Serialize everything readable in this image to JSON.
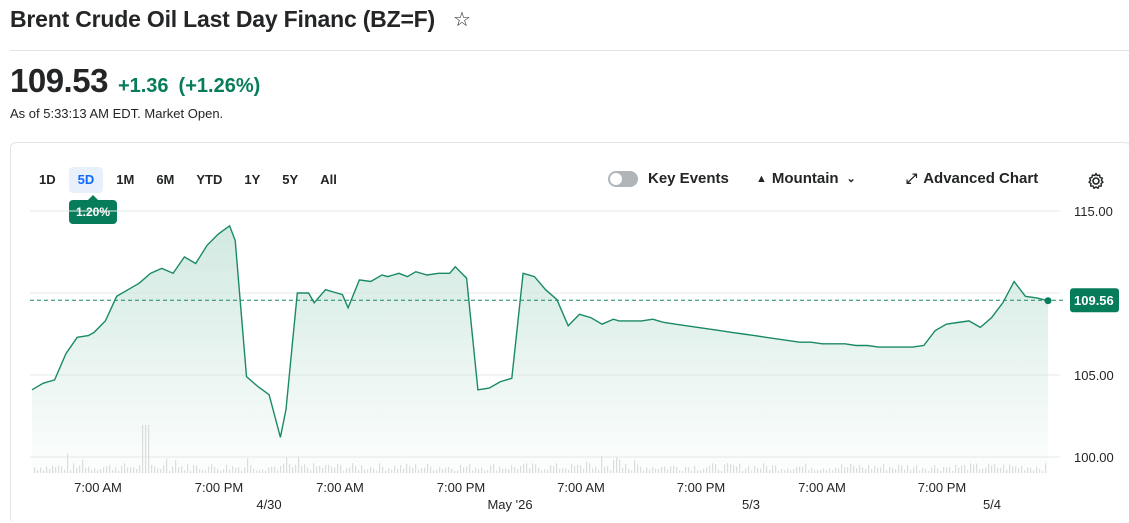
{
  "header": {
    "title": "Brent Crude Oil Last Day Financ (BZ=F)",
    "price": "109.53",
    "change": "+1.36",
    "change_pct": "(+1.26%)",
    "as_of": "As of 5:33:13 AM EDT. Market Open."
  },
  "toolbar": {
    "ranges": [
      "1D",
      "5D",
      "1M",
      "6M",
      "YTD",
      "1Y",
      "5Y",
      "All"
    ],
    "active_range": "5D",
    "range_change_badge": "1.20%",
    "key_events_label": "Key Events",
    "key_events_on": false,
    "chart_type_label": "Mountain",
    "advanced_chart_label": "Advanced Chart"
  },
  "colors": {
    "up": "#077c5a",
    "line": "#1a8a66",
    "fill_top": "#cfe8df",
    "active_range_bg": "#e8f0fb",
    "active_range_text": "#0f69ff",
    "volume": "#d9dcde"
  },
  "chart_data": {
    "type": "area",
    "ylim": [
      100,
      115
    ],
    "y_ticks": [
      "115.00",
      "105.00",
      "100.00"
    ],
    "current_price_label": "109.56",
    "reference_line": 109.56,
    "x_tick_labels": [
      "7:00 AM",
      "7:00 PM",
      "7:00 AM",
      "7:00 PM",
      "7:00 AM",
      "7:00 PM",
      "7:00 AM",
      "7:00 PM"
    ],
    "x_day_labels": [
      "4/30",
      "May '26",
      "5/3",
      "5/4"
    ],
    "series": [
      {
        "t": [
          0,
          4,
          8,
          12,
          16,
          20,
          22,
          26,
          30,
          34,
          38,
          42,
          46,
          50,
          54,
          58,
          62,
          66,
          70,
          72,
          76,
          80,
          84,
          88,
          90,
          94,
          98,
          100,
          104,
          108,
          110,
          112,
          116,
          120,
          124,
          126,
          128,
          130,
          133,
          136,
          140,
          144,
          148,
          150,
          154,
          158,
          162,
          166,
          170,
          174,
          178,
          182,
          186,
          190,
          194,
          198,
          202,
          206,
          208,
          212,
          216,
          220,
          222,
          224,
          228,
          232,
          236,
          240,
          244,
          248,
          252,
          256,
          260,
          264,
          268,
          272,
          276,
          280,
          284,
          288,
          292,
          296,
          300,
          304,
          308,
          312,
          316,
          320,
          324,
          328,
          332,
          336,
          340,
          344,
          348,
          352,
          356,
          360
        ],
        "y": [
          104.1,
          104.5,
          104.7,
          106.3,
          107.3,
          107.4,
          107.6,
          108.3,
          109.8,
          110.2,
          110.6,
          111.2,
          111.5,
          111.2,
          112.2,
          111.8,
          112.9,
          113.6,
          114.1,
          113.2,
          104.9,
          104.3,
          103.8,
          101.2,
          102.9,
          110.0,
          110.0,
          109.4,
          110.2,
          110.0,
          109.9,
          109.1,
          110.8,
          110.7,
          111.1,
          111.0,
          111.1,
          111.2,
          111.0,
          111.3,
          111.1,
          111.2,
          111.2,
          111.6,
          110.9,
          104.1,
          104.2,
          104.6,
          104.8,
          111.2,
          111.0,
          110.2,
          109.6,
          108.0,
          108.7,
          108.5,
          108.1,
          108.4,
          108.3,
          108.3,
          108.3,
          108.4,
          108.3,
          108.2,
          108.1,
          108.0,
          107.9,
          107.8,
          107.7,
          107.6,
          107.5,
          107.4,
          107.3,
          107.2,
          107.1,
          107.0,
          107.0,
          106.9,
          106.9,
          106.9,
          106.8,
          106.8,
          106.7,
          106.7,
          106.7,
          106.7,
          106.8,
          107.7,
          108.1,
          108.2,
          108.3,
          107.9,
          108.5,
          109.4,
          110.7,
          109.8,
          109.7,
          109.53
        ]
      }
    ],
    "grid": true
  }
}
